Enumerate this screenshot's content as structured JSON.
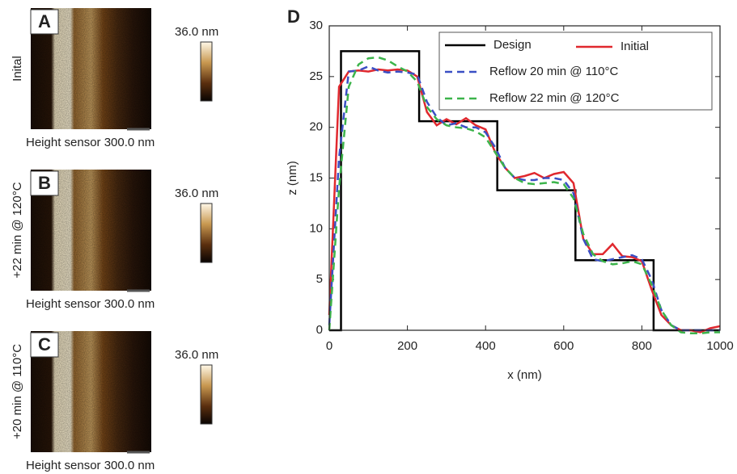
{
  "panels": [
    {
      "label": "A",
      "condition": "Inital",
      "colorbar_label": "36.0 nm",
      "caption": "Height sensor 300.0 nm"
    },
    {
      "label": "B",
      "condition": "+22 min @ 120°C",
      "colorbar_label": "36.0 nm",
      "caption": "Height sensor 300.0 nm"
    },
    {
      "label": "C",
      "condition": "+20 min @ 110°C",
      "colorbar_label": "36.0 nm",
      "caption": "Height sensor 300.0 nm"
    }
  ],
  "chart_data": {
    "type": "line",
    "panel_label": "D",
    "xlabel": "x (nm)",
    "ylabel": "z (nm)",
    "xlim": [
      0,
      1000
    ],
    "xticks": [
      0,
      200,
      400,
      600,
      800,
      1000
    ],
    "ylim": [
      0,
      30
    ],
    "yticks": [
      0,
      5,
      10,
      15,
      20,
      25,
      30
    ],
    "series": [
      {
        "name": "Design",
        "color": "#000000",
        "dash": false,
        "x": [
          0,
          30,
          30,
          230,
          230,
          430,
          430,
          630,
          630,
          830,
          830,
          1000
        ],
        "values": [
          0,
          0,
          27.5,
          27.5,
          20.6,
          20.6,
          13.8,
          13.8,
          6.9,
          6.9,
          0,
          0
        ]
      },
      {
        "name": "Initial",
        "color": "#e0282e",
        "dash": false,
        "x": [
          0,
          25,
          50,
          75,
          100,
          125,
          150,
          175,
          200,
          225,
          250,
          275,
          300,
          325,
          350,
          375,
          400,
          425,
          450,
          475,
          500,
          525,
          550,
          575,
          600,
          625,
          650,
          675,
          700,
          725,
          750,
          775,
          800,
          825,
          850,
          875,
          900,
          925,
          950,
          975,
          1000
        ],
        "values": [
          1.5,
          24,
          25.5,
          25.6,
          25.5,
          25.7,
          25.6,
          25.7,
          25.6,
          25,
          21.5,
          20.2,
          20.8,
          20.3,
          20.9,
          20.2,
          19.8,
          17.5,
          16,
          15,
          15.2,
          15.5,
          15,
          15.4,
          15.6,
          14.5,
          9,
          7.5,
          7.5,
          8.5,
          7.3,
          7.2,
          6.8,
          4,
          1.5,
          0.5,
          0,
          0,
          -0.2,
          0.2,
          0.4
        ]
      },
      {
        "name": "Reflow 20 min @ 110°C",
        "color": "#3a4fc4",
        "dash": true,
        "x": [
          0,
          25,
          50,
          75,
          100,
          125,
          150,
          175,
          200,
          225,
          250,
          275,
          300,
          325,
          350,
          375,
          400,
          425,
          450,
          475,
          500,
          525,
          550,
          575,
          600,
          625,
          650,
          675,
          700,
          725,
          750,
          775,
          800,
          825,
          850,
          875,
          900,
          925,
          950,
          975,
          1000
        ],
        "values": [
          0.5,
          17,
          25.5,
          25.6,
          26,
          25.6,
          25.4,
          25.5,
          25.4,
          25.2,
          22.5,
          21,
          20.2,
          20.4,
          20,
          20,
          19.5,
          18,
          16,
          15,
          14.8,
          14.8,
          15,
          15,
          14.8,
          13.5,
          9,
          7,
          6.8,
          7,
          7.2,
          7.4,
          7,
          5,
          2,
          0.5,
          0,
          0,
          0,
          0,
          0
        ]
      },
      {
        "name": "Reflow 22 min @ 120°C",
        "color": "#3cb44b",
        "dash": true,
        "x": [
          0,
          25,
          50,
          75,
          100,
          125,
          150,
          175,
          200,
          225,
          250,
          275,
          300,
          325,
          350,
          375,
          400,
          425,
          450,
          475,
          500,
          525,
          550,
          575,
          600,
          625,
          650,
          675,
          700,
          725,
          750,
          775,
          800,
          825,
          850,
          875,
          900,
          925,
          950,
          975,
          1000
        ],
        "values": [
          0,
          14,
          24,
          26.2,
          26.8,
          26.9,
          26.6,
          26,
          25.5,
          24.5,
          22,
          20.8,
          20.2,
          20,
          19.9,
          19.6,
          19,
          17.5,
          16,
          15,
          14.5,
          14.4,
          14.5,
          14.6,
          14.4,
          13,
          9.5,
          7.5,
          6.8,
          6.5,
          6.6,
          6.8,
          6.5,
          4.5,
          2,
          0.5,
          -0.2,
          -0.3,
          -0.3,
          -0.2,
          -0.2
        ]
      }
    ]
  }
}
